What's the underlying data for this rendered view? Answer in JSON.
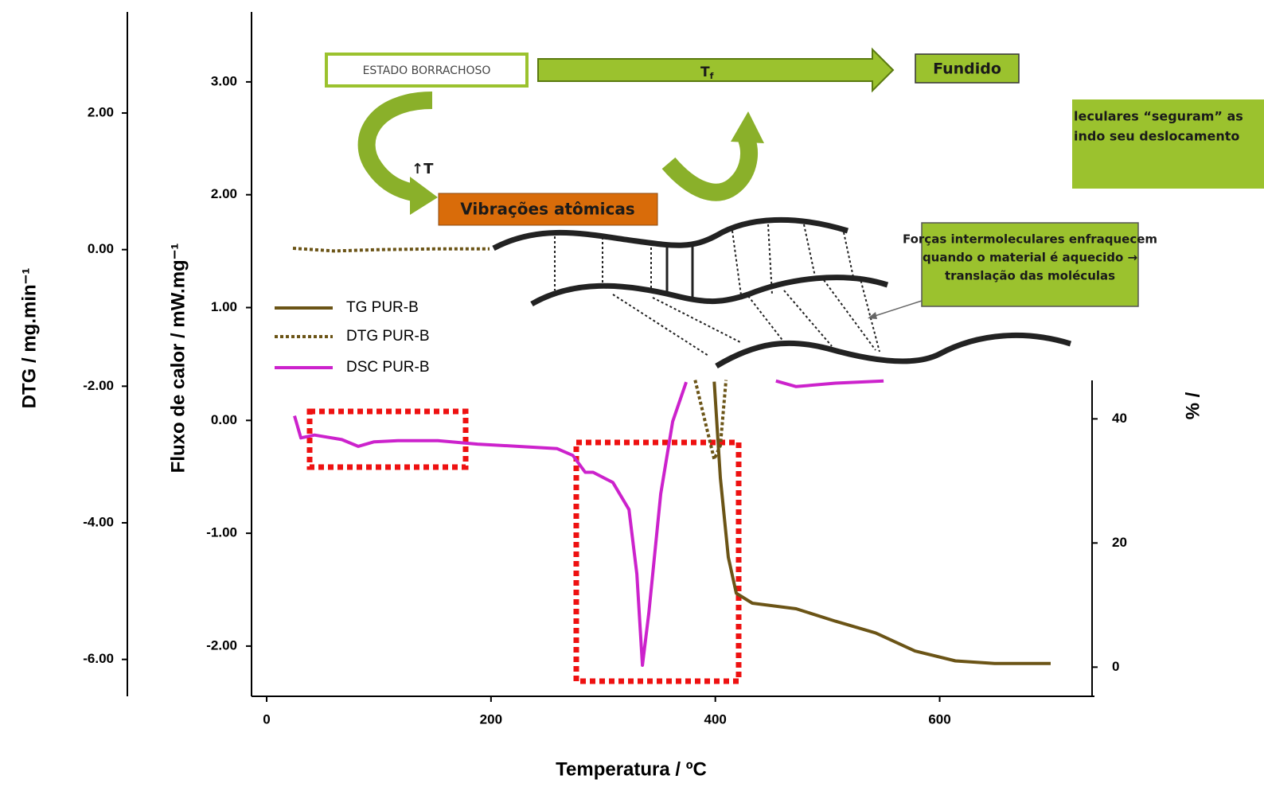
{
  "chart_data": {
    "type": "line",
    "xlabel": "Temperatura / ºC",
    "xlim": [
      -13.5,
      738
    ],
    "xticks": [
      0,
      200,
      400,
      600
    ],
    "ylabel": "Fluxo de calor / mW.mg⁻¹",
    "ylim": [
      -2.445,
      3.62
    ],
    "yticks": [
      {
        "value": 3,
        "label": "3.00"
      },
      {
        "value": 2,
        "label": "2.00"
      },
      {
        "value": 1,
        "label": "1.00"
      },
      {
        "value": 0,
        "label": "0.00"
      },
      {
        "value": -1,
        "label": "-1.00"
      },
      {
        "value": -2,
        "label": "-2.00"
      }
    ],
    "y2label": "DTG / mg.min⁻¹",
    "y2lim": [
      -6.54,
      3.48
    ],
    "y2ticks": [
      {
        "value": 2,
        "label": "2.00"
      },
      {
        "value": 0,
        "label": "0.00"
      },
      {
        "value": -2,
        "label": "-2.00"
      },
      {
        "value": -4,
        "label": "-4.00"
      },
      {
        "value": -6,
        "label": "-6.00"
      }
    ],
    "y3label": "% /",
    "y3lim": [
      -4.7,
      46.2
    ],
    "y3ticks": [
      40,
      20,
      0
    ],
    "series": [
      {
        "name": "TG PUR-B",
        "color": "#6b5416",
        "line_style": "solid",
        "axis": "y3",
        "x": [
          399,
          404.5,
          411.6,
          418.7,
          433,
          472,
          507,
          543,
          578,
          614,
          649,
          699
        ],
        "values": [
          46,
          30.5,
          17.7,
          11.9,
          10.3,
          9.4,
          7.4,
          5.5,
          2.6,
          1.0,
          0.6,
          0.6
        ]
      },
      {
        "name": "DTG PUR-B",
        "color": "#6b5416",
        "line_style": "dotted",
        "axis": "y2",
        "x": [
          23.4,
          60,
          100,
          150,
          198.7,
          null,
          382,
          399,
          404.5,
          409.5
        ],
        "values": [
          0.02,
          -0.02,
          0.0,
          0.01,
          0.01,
          null,
          -1.91,
          -3.07,
          -2.87,
          -1.91
        ]
      },
      {
        "name": "DSC PUR-B",
        "color": "#cc22cc",
        "line_style": "solid",
        "axis": "y",
        "x": [
          24.8,
          30.5,
          42.6,
          67,
          81.6,
          95.8,
          117,
          152.6,
          188,
          223.6,
          259,
          273,
          284,
          291,
          308.7,
          323,
          330,
          335,
          340.7,
          351.3,
          362,
          374,
          null,
          454,
          472,
          507,
          550
        ],
        "values": [
          0.04,
          -0.155,
          -0.13,
          -0.17,
          -0.23,
          -0.19,
          -0.18,
          -0.18,
          -0.21,
          -0.23,
          -0.25,
          -0.31,
          -0.46,
          -0.46,
          -0.55,
          -0.79,
          -1.36,
          -2.17,
          -1.71,
          -0.65,
          -0.01,
          0.34,
          null,
          0.35,
          0.3,
          0.33,
          0.35
        ]
      }
    ],
    "annotations": {
      "rubbery_state": "ESTADO BORRACHOSO",
      "tf_main": "T",
      "tf_sub": "f",
      "melt": "Fundido",
      "temp_up": "↑T",
      "vibrations": "Vibrações atômicas",
      "hold_line1": "leculares “seguram” as",
      "hold_line2": "indo seu deslocamento",
      "forces_line1": "Forças intermoleculares enfraquecem",
      "forces_line2": "quando o material é aquecido →",
      "forces_line3": "translação das moléculas"
    }
  }
}
